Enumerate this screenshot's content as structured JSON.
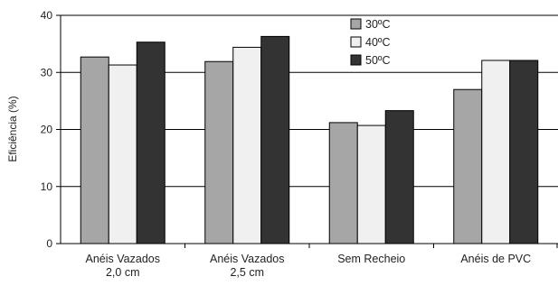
{
  "chart_data": {
    "type": "bar",
    "title": "",
    "xlabel": "",
    "ylabel": "Eficiência (%)",
    "ylim": [
      0,
      40
    ],
    "yticks": [
      "0",
      "10",
      "20",
      "30",
      "40"
    ],
    "grid": true,
    "legend_position": "top-center-right",
    "categories": [
      [
        "Anéis Vazados",
        "2,0 cm"
      ],
      [
        "Anéis Vazados",
        "2,5 cm"
      ],
      [
        "Sem Recheio"
      ],
      [
        "Anéis de PVC"
      ]
    ],
    "series": [
      {
        "name": "30ºC",
        "color": "#a6a6a6",
        "values": [
          32.7,
          31.9,
          21.2,
          27.0
        ]
      },
      {
        "name": "40ºC",
        "color": "#f0f0f0",
        "values": [
          31.3,
          34.4,
          20.7,
          32.1
        ]
      },
      {
        "name": "50ºC",
        "color": "#333333",
        "values": [
          35.3,
          36.3,
          23.3,
          32.1
        ]
      }
    ]
  }
}
